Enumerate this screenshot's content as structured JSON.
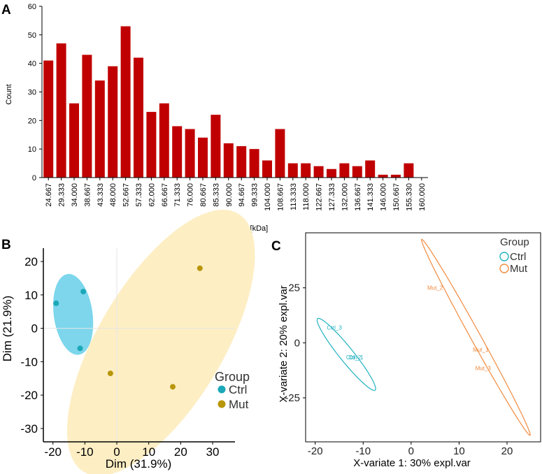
{
  "chart_data": [
    {
      "panel": "A",
      "type": "bar",
      "title": "",
      "xlabel": "Proteins - MW [kDa]",
      "ylabel": "Count",
      "ylim": [
        0,
        60
      ],
      "yticks": [
        "0",
        "10",
        "20",
        "30",
        "40",
        "50",
        "60"
      ],
      "categories": [
        "24.667",
        "29.333",
        "34.000",
        "38.667",
        "43.333",
        "48.000",
        "52.667",
        "57.333",
        "62.000",
        "66.667",
        "71.333",
        "76.000",
        "80.667",
        "85.333",
        "90.000",
        "94.667",
        "99.333",
        "104.000",
        "108.667",
        "113.333",
        "118.000",
        "122.667",
        "127.333",
        "132.000",
        "136.667",
        "141.333",
        "146.000",
        "150.667",
        "155.330",
        "160.000"
      ],
      "values": [
        41,
        47,
        26,
        43,
        34,
        39,
        53,
        42,
        23,
        26,
        18,
        17,
        14,
        22,
        12,
        11,
        10,
        6,
        17,
        5,
        5,
        4,
        3,
        5,
        4,
        6,
        1,
        1,
        5,
        0
      ],
      "bar_color": "#c00000"
    },
    {
      "panel": "B",
      "type": "scatter",
      "xlabel": "Dim (31.9%)",
      "ylabel": "Dim (21.9%)",
      "xlim": [
        -23,
        37
      ],
      "ylim": [
        -34,
        24
      ],
      "xticks": [
        "-20",
        "-10",
        "0",
        "10",
        "20",
        "30"
      ],
      "yticks": [
        "20",
        "10",
        "0",
        "-10",
        "-20",
        "-30"
      ],
      "legend": {
        "title": "Group",
        "entries": [
          "Ctrl",
          "Mut"
        ],
        "position": "right"
      },
      "series": [
        {
          "name": "Ctrl",
          "color": "#1ba8b8",
          "fill": "#7dd6ec",
          "points": [
            {
              "x": -19,
              "y": 7.5
            },
            {
              "x": -10.5,
              "y": 11
            },
            {
              "x": -11.5,
              "y": -6
            }
          ]
        },
        {
          "name": "Mut",
          "color": "#b8960a",
          "fill": "#fdeec4",
          "points": [
            {
              "x": 26,
              "y": 18
            },
            {
              "x": -2,
              "y": -13.5
            },
            {
              "x": 17.5,
              "y": -17.5
            }
          ]
        }
      ]
    },
    {
      "panel": "C",
      "type": "scatter",
      "xlabel": "X-variate 1: 30% expl.var",
      "ylabel": "X-variate 2: 20% expl.var",
      "xlim": [
        -22,
        27
      ],
      "ylim": [
        -45,
        50
      ],
      "xticks": [
        "-20",
        "-10",
        "0",
        "10",
        "20"
      ],
      "yticks": [
        "25",
        "0",
        "-25"
      ],
      "legend": {
        "title": "Group",
        "entries": [
          "Ctrl",
          "Mut"
        ],
        "position": "top-right"
      },
      "series": [
        {
          "name": "Ctrl",
          "color": "#20b2c0",
          "points": [
            {
              "x": -16,
              "y": 7,
              "label": "Ctrl_3"
            },
            {
              "x": -12,
              "y": -6.5,
              "label": "Ctrl_2"
            },
            {
              "x": -11.5,
              "y": -6.5,
              "label": "Ctrl_1"
            }
          ]
        },
        {
          "name": "Mut",
          "color": "#f08a3e",
          "points": [
            {
              "x": 5,
              "y": 25,
              "label": "Mut_2"
            },
            {
              "x": 14.5,
              "y": -3,
              "label": "Mut_1"
            },
            {
              "x": 15,
              "y": -11.5,
              "label": "Mut_3"
            }
          ]
        }
      ]
    }
  ],
  "panels": {
    "a": "A",
    "b": "B",
    "c": "C"
  }
}
